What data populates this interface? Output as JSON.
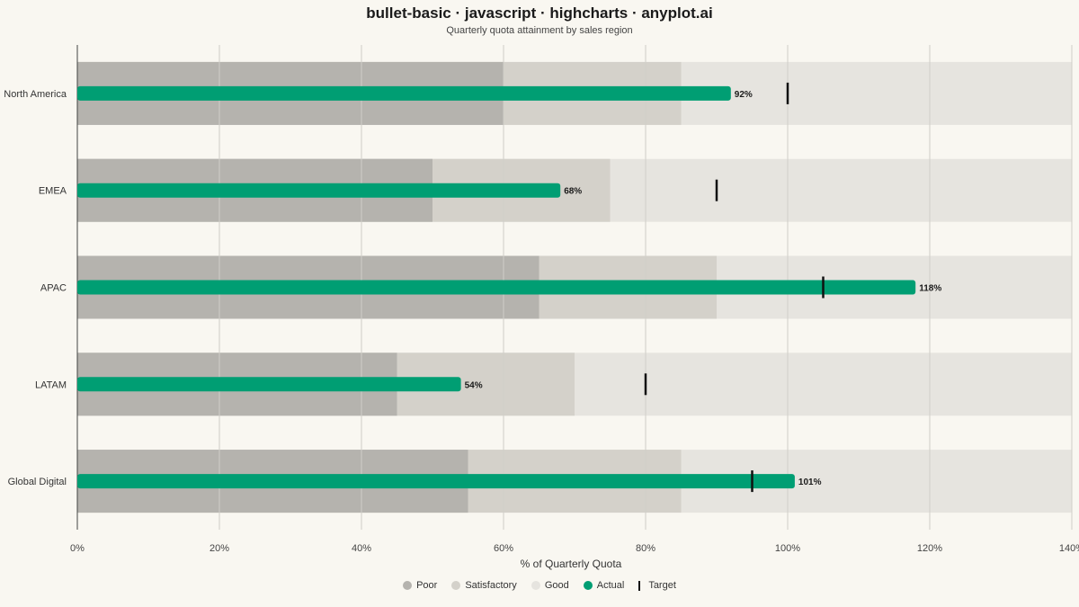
{
  "title": "bullet-basic · javascript · highcharts · anyplot.ai",
  "subtitle": "Quarterly quota attainment by sales region",
  "chart_data": {
    "type": "bar",
    "orientation": "horizontal",
    "title": "bullet-basic · javascript · highcharts · anyplot.ai",
    "subtitle": "Quarterly quota attainment by sales region",
    "xlabel": "% of Quarterly Quota",
    "xlim": [
      0,
      140
    ],
    "x_ticks": [
      0,
      20,
      40,
      60,
      80,
      100,
      120,
      140
    ],
    "x_tick_suffix": "%",
    "grid": true,
    "legend_placement": "bottom",
    "categories": [
      "North America",
      "EMEA",
      "APAC",
      "LATAM",
      "Global Digital"
    ],
    "ranges": {
      "poor": [
        60,
        50,
        65,
        45,
        55
      ],
      "satisfactory": [
        85,
        75,
        90,
        70,
        85
      ],
      "good": [
        140,
        140,
        140,
        140,
        140
      ]
    },
    "series": [
      {
        "name": "Actual",
        "values": [
          92,
          68,
          118,
          54,
          101
        ],
        "labels": [
          "92%",
          "68%",
          "118%",
          "54%",
          "101%"
        ]
      },
      {
        "name": "Target",
        "values": [
          100,
          90,
          105,
          80,
          95
        ]
      }
    ]
  },
  "legend": [
    {
      "label": "Poor",
      "shape": "dot",
      "color": "#b5b3ae"
    },
    {
      "label": "Satisfactory",
      "shape": "dot",
      "color": "#d4d1ca"
    },
    {
      "label": "Good",
      "shape": "dot",
      "color": "#e6e4df"
    },
    {
      "label": "Actual",
      "shape": "dot",
      "color": "#009e73"
    },
    {
      "label": "Target",
      "shape": "bar",
      "color": "#111111"
    }
  ],
  "colors": {
    "poor": "#b5b3ae",
    "satisfactory": "#d4d1ca",
    "good": "#e6e4df",
    "actual": "#009e73",
    "target": "#111111",
    "grid": "#d0cec8",
    "axis": "#444444"
  }
}
